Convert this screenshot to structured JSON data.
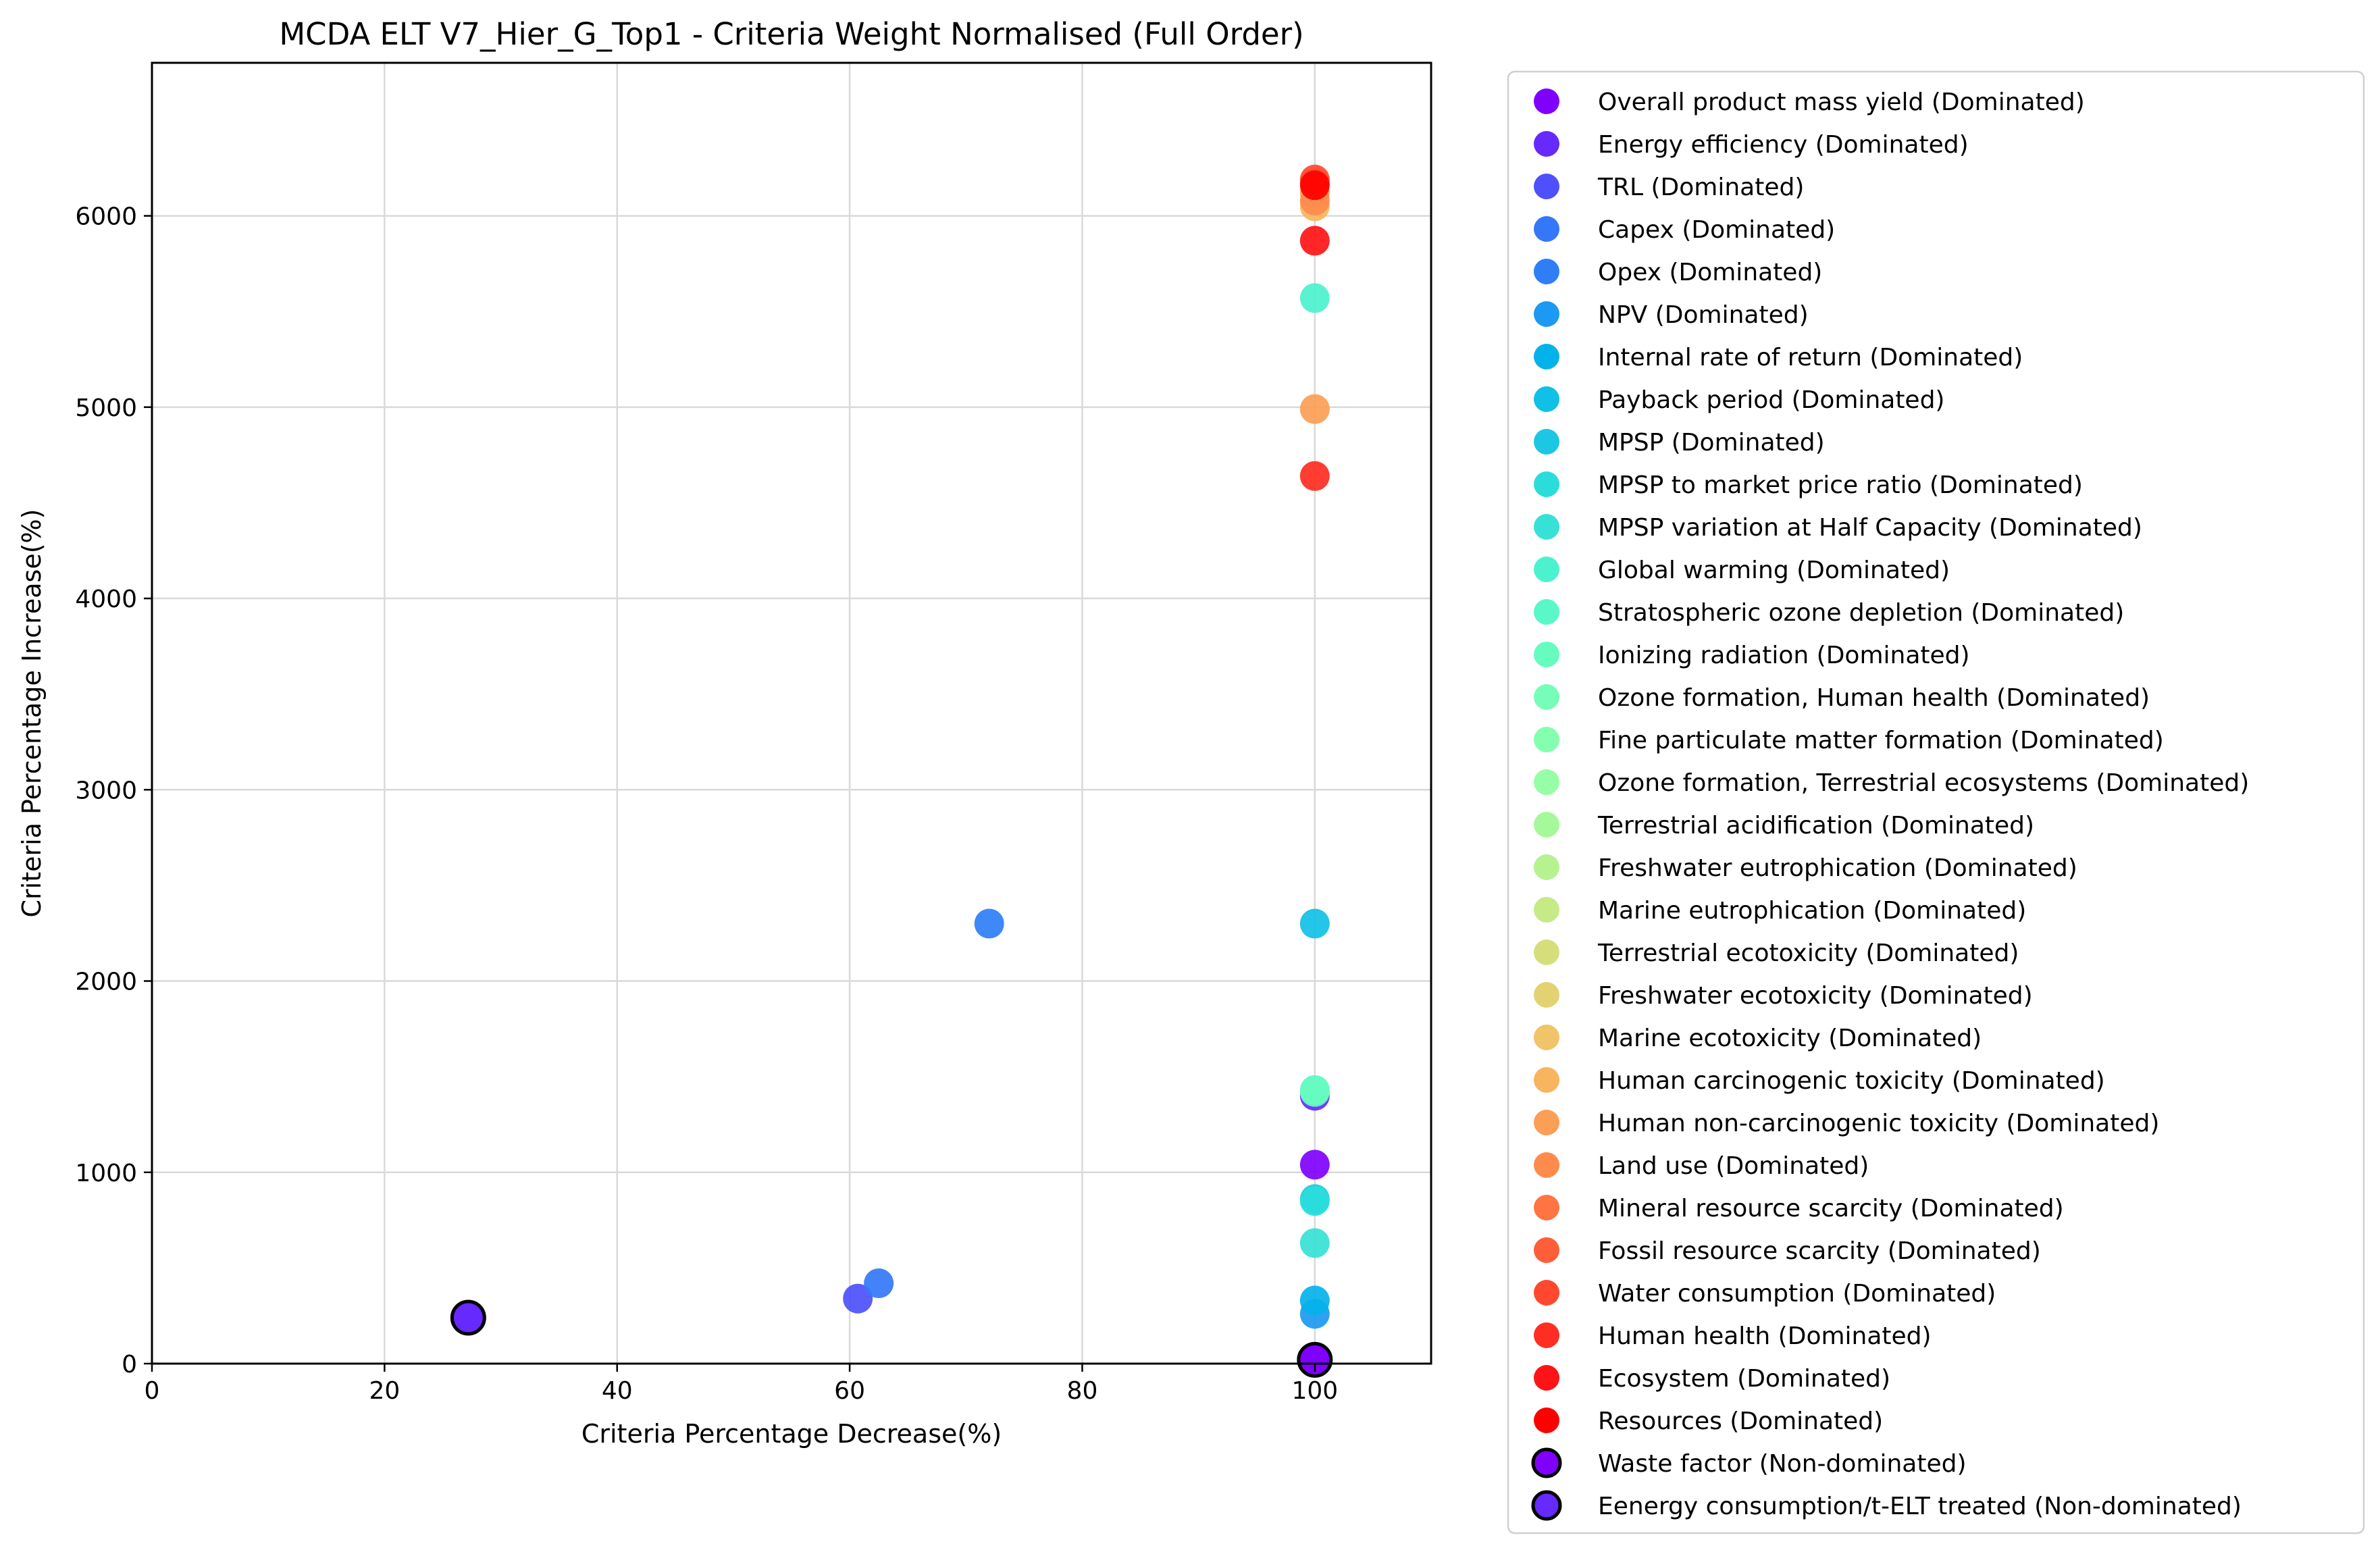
{
  "chart_data": {
    "type": "scatter",
    "title": "MCDA ELT V7_Hier_G_Top1 - Criteria Weight Normalised (Full Order)",
    "xlabel": "Criteria Percentage Decrease(%)",
    "ylabel": "Criteria Percentage Increase(%)",
    "xlim": [
      0,
      110
    ],
    "ylim": [
      0,
      6800
    ],
    "xticks": [
      0,
      20,
      40,
      60,
      80,
      100
    ],
    "yticks": [
      0,
      1000,
      2000,
      3000,
      4000,
      5000,
      6000
    ],
    "grid": true,
    "legend_position": "outside-right",
    "series": [
      {
        "name": "Overall product mass yield (Dominated)",
        "color": "#7f00ff",
        "points": [
          [
            100,
            1040
          ]
        ]
      },
      {
        "name": "Energy efficiency (Dominated)",
        "color": "#6629fe",
        "points": [
          [
            100,
            1400
          ]
        ]
      },
      {
        "name": "TRL (Dominated)",
        "color": "#4d50fc",
        "points": [
          [
            60.7,
            340
          ]
        ]
      },
      {
        "name": "Capex (Dominated)",
        "color": "#3477f8",
        "points": [
          [
            62.5,
            420
          ]
        ]
      },
      {
        "name": "Opex (Dominated)",
        "color": "#2e7ef7",
        "points": [
          [
            72,
            2300
          ]
        ]
      },
      {
        "name": "NPV (Dominated)",
        "color": "#1c99f2",
        "points": [
          [
            100,
            260
          ]
        ]
      },
      {
        "name": "Internal rate of return (Dominated)",
        "color": "#04b2ea",
        "points": [
          [
            100,
            330
          ]
        ]
      },
      {
        "name": "Payback period (Dominated)",
        "color": "#10c0e6",
        "points": [
          [
            100,
            2300
          ]
        ]
      },
      {
        "name": "MPSP (Dominated)",
        "color": "#1cc7e3",
        "points": [
          [
            100,
            860
          ]
        ]
      },
      {
        "name": "MPSP to market price ratio (Dominated)",
        "color": "#2adddb",
        "points": [
          [
            100,
            850
          ]
        ]
      },
      {
        "name": "MPSP variation at Half Capacity (Dominated)",
        "color": "#36e2d5",
        "points": [
          [
            100,
            630
          ]
        ]
      },
      {
        "name": "Global warming (Dominated)",
        "color": "#4cf2ce",
        "points": [
          [
            100,
            5570
          ]
        ]
      },
      {
        "name": "Stratospheric ozone depletion (Dominated)",
        "color": "#5af8c8",
        "points": [
          [
            100,
            1430
          ]
        ]
      },
      {
        "name": "Ionizing radiation (Dominated)",
        "color": "#66fcc0",
        "points": [
          [
            100,
            1420
          ]
        ]
      },
      {
        "name": "Ozone formation, Human health (Dominated)",
        "color": "#76feb8",
        "points": []
      },
      {
        "name": "Fine particulate matter formation (Dominated)",
        "color": "#84ffb0",
        "points": []
      },
      {
        "name": "Ozone formation, Terrestrial ecosystems (Dominated)",
        "color": "#96fea6",
        "points": []
      },
      {
        "name": "Terrestrial acidification (Dominated)",
        "color": "#a6f99b",
        "points": []
      },
      {
        "name": "Freshwater eutrophication (Dominated)",
        "color": "#b6f290",
        "points": []
      },
      {
        "name": "Marine eutrophication (Dominated)",
        "color": "#c6ea86",
        "points": []
      },
      {
        "name": "Terrestrial ecotoxicity (Dominated)",
        "color": "#d6de7c",
        "points": []
      },
      {
        "name": "Freshwater ecotoxicity (Dominated)",
        "color": "#e2d272",
        "points": []
      },
      {
        "name": "Marine ecotoxicity (Dominated)",
        "color": "#f0c468",
        "points": []
      },
      {
        "name": "Human carcinogenic toxicity (Dominated)",
        "color": "#f8b45e",
        "points": [
          [
            100,
            6050
          ]
        ]
      },
      {
        "name": "Human non-carcinogenic toxicity (Dominated)",
        "color": "#fb9e56",
        "points": [
          [
            100,
            4990
          ],
          [
            100,
            6120
          ]
        ]
      },
      {
        "name": "Land use (Dominated)",
        "color": "#fe8b4c",
        "points": [
          [
            100,
            6080
          ]
        ]
      },
      {
        "name": "Mineral resource scarcity (Dominated)",
        "color": "#ff7442",
        "points": [
          [
            100,
            6170
          ]
        ]
      },
      {
        "name": "Fossil resource scarcity (Dominated)",
        "color": "#ff5f38",
        "points": []
      },
      {
        "name": "Water consumption (Dominated)",
        "color": "#ff482e",
        "points": [
          [
            100,
            6190
          ]
        ]
      },
      {
        "name": "Human health (Dominated)",
        "color": "#ff2d22",
        "points": [
          [
            100,
            4640
          ]
        ]
      },
      {
        "name": "Ecosystem (Dominated)",
        "color": "#ff1316",
        "points": [
          [
            100,
            5870
          ]
        ]
      },
      {
        "name": "Resources (Dominated)",
        "color": "#ff0000",
        "points": [
          [
            100,
            6160
          ]
        ]
      },
      {
        "name": "Waste factor (Non-dominated)",
        "color": "#7f00ff",
        "nondominated": true,
        "points": [
          [
            100,
            20
          ]
        ]
      },
      {
        "name": "Eenergy consumption/t-ELT treated (Non-dominated)",
        "color": "#6629fe",
        "nondominated": true,
        "points": [
          [
            27.2,
            240
          ]
        ]
      }
    ]
  }
}
